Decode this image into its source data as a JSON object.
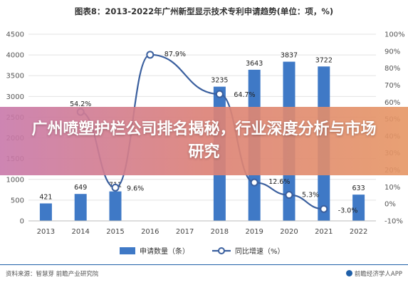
{
  "header": {
    "title": "图表8：2013-2022年广州新型显示技术专利申请趋势(单位：项，%)"
  },
  "overlay": {
    "headline": "广州喷塑护栏公司排名揭秘，行业深度分析与市场研究"
  },
  "footer": {
    "source_left": "资料来源：智慧芽 前瞻产业研究院",
    "source_right": "前瞻经济学人APP"
  },
  "colors": {
    "bar": "#3f79c6",
    "line": "#3a5f9e",
    "marker": "#3a5f9e",
    "grid": "#e3e3e3",
    "footer_rule": "#1f5fa8"
  },
  "chart_data": {
    "type": "bar",
    "categories": [
      "2013",
      "2014",
      "2015",
      "2016",
      "2017",
      "2018",
      "2019",
      "2020",
      "2021",
      "2022"
    ],
    "series": [
      {
        "name": "申请数量（条）",
        "kind": "bar",
        "axis": "left",
        "values": [
          421,
          649,
          711,
          null,
          null,
          3235,
          3643,
          3837,
          3722,
          633
        ],
        "labels": [
          "421",
          "649",
          "711",
          "",
          "",
          "3235",
          "3643",
          "3837",
          "3722",
          "633"
        ]
      },
      {
        "name": "同比增速（%）",
        "kind": "line",
        "axis": "right",
        "values": [
          null,
          54.2,
          9.6,
          87.9,
          null,
          64.7,
          12.6,
          5.3,
          -3.0,
          null
        ],
        "labels": [
          "",
          "54.2%",
          "9.6%",
          "87.9%",
          "",
          "64.7%",
          "12.6%",
          "5.3%",
          "-3.0%",
          ""
        ]
      }
    ],
    "y_left": {
      "ylim": [
        0,
        4500
      ],
      "ticks": [
        "0",
        "500",
        "1000",
        "1500",
        "2000",
        "2500",
        "3000",
        "3500",
        "4000",
        "4500"
      ]
    },
    "y_right": {
      "ylim": [
        -10,
        100
      ],
      "ticks": [
        "-10%",
        "0%",
        "10%",
        "20%",
        "30%",
        "40%",
        "50%",
        "60%",
        "70%",
        "80%",
        "90%",
        "100%"
      ]
    },
    "grid": true,
    "legend_position": "bottom"
  }
}
